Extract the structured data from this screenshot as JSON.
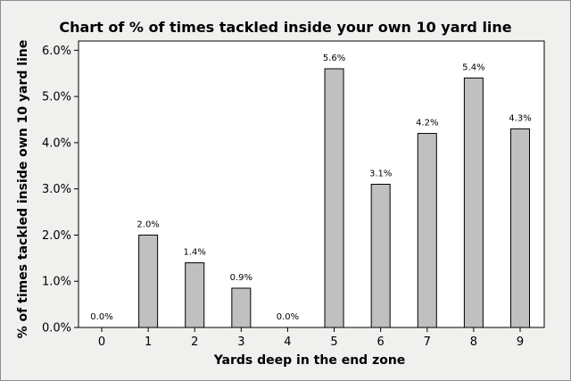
{
  "chart_data": {
    "type": "bar",
    "title": "Chart of % of times tackled inside your own 10 yard line",
    "xlabel": "Yards deep in the end zone",
    "ylabel": "% of times tackled inside own 10 yard line",
    "categories": [
      "0",
      "1",
      "2",
      "3",
      "4",
      "5",
      "6",
      "7",
      "8",
      "9"
    ],
    "values": [
      0.0,
      2.0,
      1.4,
      0.85,
      0.0,
      5.6,
      3.1,
      4.2,
      5.4,
      4.3
    ],
    "data_labels": [
      "0.0%",
      "2.0%",
      "1.4%",
      "0.9%",
      "0.0%",
      "5.6%",
      "3.1%",
      "4.2%",
      "5.4%",
      "4.3%"
    ],
    "ylim": [
      0,
      6.2
    ],
    "yticks": [
      0,
      1,
      2,
      3,
      4,
      5,
      6
    ],
    "ytick_labels": [
      "0.0%",
      "1.0%",
      "2.0%",
      "3.0%",
      "4.0%",
      "5.0%",
      "6.0%"
    ],
    "grid": false,
    "colors": {
      "bar_fill": "#c0c0c0",
      "bar_stroke": "#000000",
      "background": "#f0f0ee",
      "plot_background": "#ffffff"
    }
  }
}
